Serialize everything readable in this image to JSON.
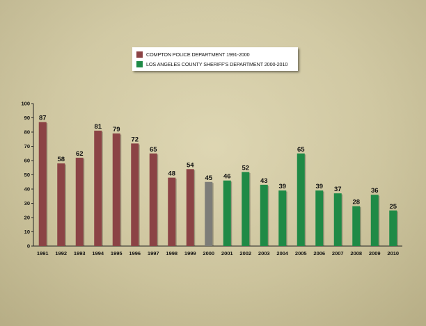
{
  "chart_data": {
    "type": "bar",
    "categories": [
      "1991",
      "1992",
      "1993",
      "1994",
      "1995",
      "1996",
      "1997",
      "1998",
      "1999",
      "2000",
      "2001",
      "2002",
      "2003",
      "2004",
      "2005",
      "2006",
      "2007",
      "2008",
      "2009",
      "2010"
    ],
    "values": [
      87,
      58,
      62,
      81,
      79,
      72,
      65,
      48,
      54,
      45,
      46,
      52,
      43,
      39,
      65,
      39,
      37,
      28,
      36,
      25
    ],
    "bar_colors": [
      "#8b4345",
      "#8b4345",
      "#8b4345",
      "#8b4345",
      "#8b4345",
      "#8b4345",
      "#8b4345",
      "#8b4345",
      "#8b4345",
      "#7d7d78",
      "#1f8a46",
      "#1f8a46",
      "#1f8a46",
      "#1f8a46",
      "#1f8a46",
      "#1f8a46",
      "#1f8a46",
      "#1f8a46",
      "#1f8a46",
      "#1f8a46"
    ],
    "ylim": [
      0,
      100
    ],
    "yticks": [
      "0",
      "10",
      "20",
      "30",
      "40",
      "50",
      "60",
      "70",
      "80",
      "90",
      "100"
    ],
    "grid": false,
    "legend_position": "top-center",
    "data_labels": true
  },
  "legend": {
    "items": [
      {
        "label": "COMPTON POLICE DEPARTMENT  1991-2000",
        "color": "#8b4345"
      },
      {
        "label": "LOS ANGELES COUNTY SHERIFF'S DEPARTMENT  2000-2010",
        "color": "#1f8a46"
      }
    ]
  }
}
